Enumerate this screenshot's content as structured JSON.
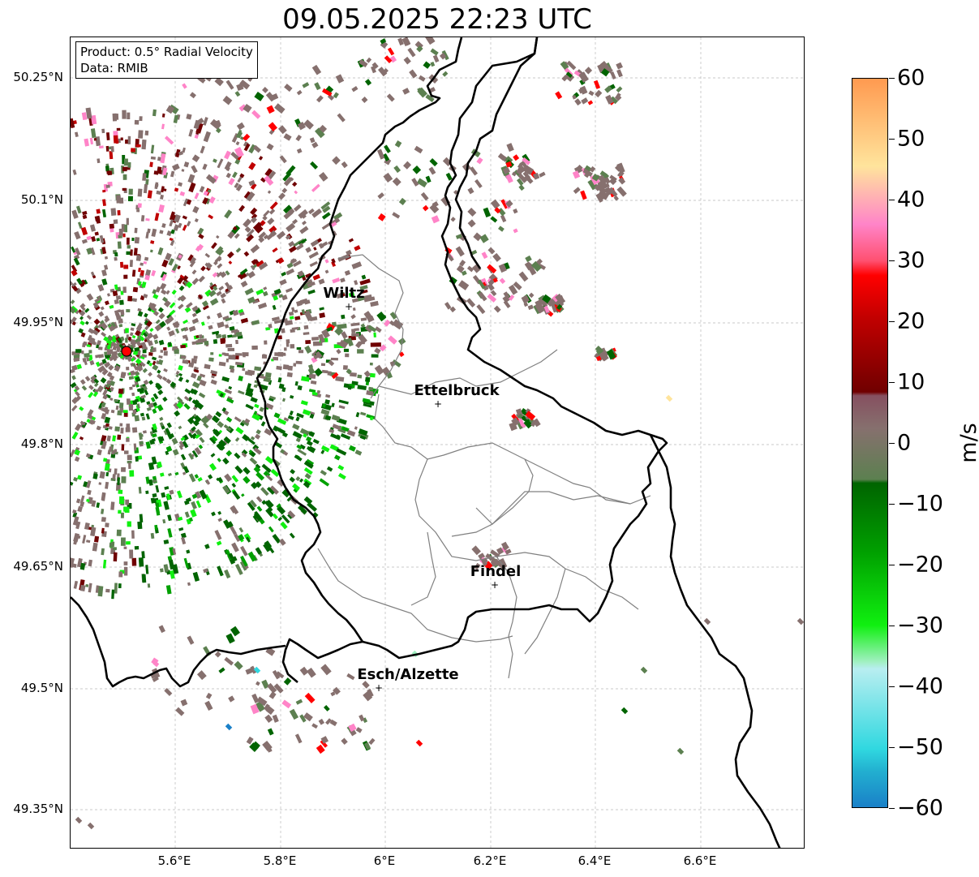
{
  "title": "09.05.2025 22:23 UTC",
  "infobox": {
    "line1": "Product: 0.5° Radial Velocity",
    "line2": "Data: RMIB"
  },
  "axes": {
    "y_ticks": [
      "50.25°N",
      "50.1°N",
      "49.95°N",
      "49.8°N",
      "49.65°N",
      "49.5°N",
      "49.35°N"
    ],
    "x_ticks": [
      "5.6°E",
      "5.8°E",
      "6°E",
      "6.2°E",
      "6.4°E",
      "6.6°E"
    ]
  },
  "cities": [
    {
      "name": "Wiltz",
      "marker": "+"
    },
    {
      "name": "Ettelbruck",
      "marker": "+"
    },
    {
      "name": "Findel",
      "marker": "+"
    },
    {
      "name": "Esch/Alzette",
      "marker": "+"
    }
  ],
  "radar_site_color": "#ff0000",
  "colorbar": {
    "unit": "m/s",
    "ticks": [
      "60",
      "50",
      "40",
      "30",
      "20",
      "10",
      "0",
      "−10",
      "−20",
      "−30",
      "−40",
      "−50",
      "−60"
    ],
    "min": -60,
    "max": 60
  },
  "palette": {
    "positive_high": "#ff9a50",
    "positive_peach": "#ffe49c",
    "positive_pink": "#ff84c8",
    "positive_red": "#ff0000",
    "positive_dark": "#700000",
    "near_zero": "#86706e",
    "negative_olive": "#5c8050",
    "negative_green": "#006400",
    "negative_bright": "#10f010",
    "negative_light": "#a0f0c0",
    "negative_cyan": "#30d8e0",
    "negative_blue": "#1a80c8"
  }
}
